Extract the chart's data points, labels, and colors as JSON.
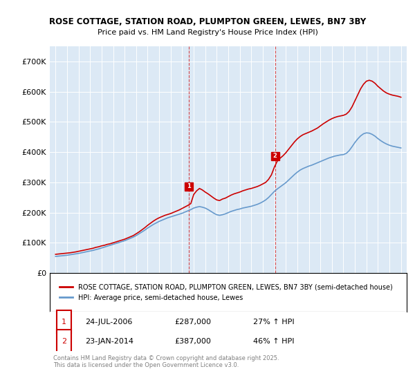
{
  "title1": "ROSE COTTAGE, STATION ROAD, PLUMPTON GREEN, LEWES, BN7 3BY",
  "title2": "Price paid vs. HM Land Registry's House Price Index (HPI)",
  "legend_label_red": "ROSE COTTAGE, STATION ROAD, PLUMPTON GREEN, LEWES, BN7 3BY (semi-detached house)",
  "legend_label_blue": "HPI: Average price, semi-detached house, Lewes",
  "purchase1_label": "1",
  "purchase1_date": "24-JUL-2006",
  "purchase1_price": "£287,000",
  "purchase1_hpi": "27% ↑ HPI",
  "purchase2_label": "2",
  "purchase2_date": "23-JAN-2014",
  "purchase2_price": "£387,000",
  "purchase2_hpi": "46% ↑ HPI",
  "footnote": "Contains HM Land Registry data © Crown copyright and database right 2025.\nThis data is licensed under the Open Government Licence v3.0.",
  "background_color": "#dce9f5",
  "plot_bg_color": "#dce9f5",
  "red_color": "#cc0000",
  "blue_color": "#6699cc",
  "marker1_x": 2006.56,
  "marker1_y": 287000,
  "marker2_x": 2014.07,
  "marker2_y": 387000,
  "vline1_x": 2006.56,
  "vline2_x": 2014.07,
  "ylim_min": 0,
  "ylim_max": 750000,
  "xlim_min": 1994.5,
  "xlim_max": 2025.5,
  "yticks": [
    0,
    100000,
    200000,
    300000,
    400000,
    500000,
    600000,
    700000
  ],
  "ytick_labels": [
    "£0",
    "£100K",
    "£200K",
    "£300K",
    "£400K",
    "£500K",
    "£600K",
    "£700K"
  ],
  "xticks": [
    1995,
    1996,
    1997,
    1998,
    1999,
    2000,
    2001,
    2002,
    2003,
    2004,
    2005,
    2006,
    2007,
    2008,
    2009,
    2010,
    2011,
    2012,
    2013,
    2014,
    2015,
    2016,
    2017,
    2018,
    2019,
    2020,
    2021,
    2022,
    2023,
    2024,
    2025
  ],
  "red_x": [
    1995.0,
    1995.25,
    1995.5,
    1995.75,
    1996.0,
    1996.25,
    1996.5,
    1996.75,
    1997.0,
    1997.25,
    1997.5,
    1997.75,
    1998.0,
    1998.25,
    1998.5,
    1998.75,
    1999.0,
    1999.25,
    1999.5,
    1999.75,
    2000.0,
    2000.25,
    2000.5,
    2000.75,
    2001.0,
    2001.25,
    2001.5,
    2001.75,
    2002.0,
    2002.25,
    2002.5,
    2002.75,
    2003.0,
    2003.25,
    2003.5,
    2003.75,
    2004.0,
    2004.25,
    2004.5,
    2004.75,
    2005.0,
    2005.25,
    2005.5,
    2005.75,
    2006.0,
    2006.25,
    2006.5,
    2006.75,
    2007.0,
    2007.25,
    2007.5,
    2007.75,
    2008.0,
    2008.25,
    2008.5,
    2008.75,
    2009.0,
    2009.25,
    2009.5,
    2009.75,
    2010.0,
    2010.25,
    2010.5,
    2010.75,
    2011.0,
    2011.25,
    2011.5,
    2011.75,
    2012.0,
    2012.25,
    2012.5,
    2012.75,
    2013.0,
    2013.25,
    2013.5,
    2013.75,
    2014.0,
    2014.25,
    2014.5,
    2014.75,
    2015.0,
    2015.25,
    2015.5,
    2015.75,
    2016.0,
    2016.25,
    2016.5,
    2016.75,
    2017.0,
    2017.25,
    2017.5,
    2017.75,
    2018.0,
    2018.25,
    2018.5,
    2018.75,
    2019.0,
    2019.25,
    2019.5,
    2019.75,
    2020.0,
    2020.25,
    2020.5,
    2020.75,
    2021.0,
    2021.25,
    2021.5,
    2021.75,
    2022.0,
    2022.25,
    2022.5,
    2022.75,
    2023.0,
    2023.25,
    2023.5,
    2023.75,
    2024.0,
    2024.25,
    2024.5,
    2024.75,
    2025.0
  ],
  "red_y": [
    62000,
    63000,
    64000,
    65000,
    66000,
    67000,
    68500,
    70000,
    72000,
    74000,
    76000,
    78000,
    80000,
    82000,
    85000,
    87000,
    90000,
    92000,
    95000,
    97000,
    100000,
    103000,
    106000,
    109000,
    112000,
    116000,
    120000,
    124000,
    130000,
    136000,
    143000,
    150000,
    158000,
    165000,
    172000,
    178000,
    183000,
    187000,
    191000,
    194000,
    197000,
    201000,
    205000,
    209000,
    214000,
    219000,
    224000,
    230000,
    260000,
    272000,
    280000,
    275000,
    268000,
    262000,
    255000,
    248000,
    242000,
    240000,
    245000,
    248000,
    253000,
    258000,
    262000,
    265000,
    268000,
    272000,
    275000,
    278000,
    280000,
    283000,
    286000,
    290000,
    295000,
    300000,
    310000,
    325000,
    350000,
    370000,
    380000,
    388000,
    398000,
    410000,
    422000,
    434000,
    444000,
    452000,
    458000,
    462000,
    466000,
    470000,
    475000,
    480000,
    487000,
    494000,
    500000,
    506000,
    511000,
    515000,
    518000,
    520000,
    522000,
    526000,
    535000,
    550000,
    570000,
    590000,
    610000,
    625000,
    635000,
    638000,
    635000,
    628000,
    618000,
    610000,
    602000,
    596000,
    592000,
    589000,
    587000,
    585000,
    582000
  ],
  "blue_x": [
    1995.0,
    1995.25,
    1995.5,
    1995.75,
    1996.0,
    1996.25,
    1996.5,
    1996.75,
    1997.0,
    1997.25,
    1997.5,
    1997.75,
    1998.0,
    1998.25,
    1998.5,
    1998.75,
    1999.0,
    1999.25,
    1999.5,
    1999.75,
    2000.0,
    2000.25,
    2000.5,
    2000.75,
    2001.0,
    2001.25,
    2001.5,
    2001.75,
    2002.0,
    2002.25,
    2002.5,
    2002.75,
    2003.0,
    2003.25,
    2003.5,
    2003.75,
    2004.0,
    2004.25,
    2004.5,
    2004.75,
    2005.0,
    2005.25,
    2005.5,
    2005.75,
    2006.0,
    2006.25,
    2006.5,
    2006.75,
    2007.0,
    2007.25,
    2007.5,
    2007.75,
    2008.0,
    2008.25,
    2008.5,
    2008.75,
    2009.0,
    2009.25,
    2009.5,
    2009.75,
    2010.0,
    2010.25,
    2010.5,
    2010.75,
    2011.0,
    2011.25,
    2011.5,
    2011.75,
    2012.0,
    2012.25,
    2012.5,
    2012.75,
    2013.0,
    2013.25,
    2013.5,
    2013.75,
    2014.0,
    2014.25,
    2014.5,
    2014.75,
    2015.0,
    2015.25,
    2015.5,
    2015.75,
    2016.0,
    2016.25,
    2016.5,
    2016.75,
    2017.0,
    2017.25,
    2017.5,
    2017.75,
    2018.0,
    2018.25,
    2018.5,
    2018.75,
    2019.0,
    2019.25,
    2019.5,
    2019.75,
    2020.0,
    2020.25,
    2020.5,
    2020.75,
    2021.0,
    2021.25,
    2021.5,
    2021.75,
    2022.0,
    2022.25,
    2022.5,
    2022.75,
    2023.0,
    2023.25,
    2023.5,
    2023.75,
    2024.0,
    2024.25,
    2024.5,
    2024.75,
    2025.0
  ],
  "blue_y": [
    55000,
    56000,
    57000,
    58000,
    59000,
    60500,
    62000,
    63500,
    65000,
    67000,
    69000,
    71000,
    73000,
    75000,
    77500,
    80000,
    83000,
    86000,
    89000,
    92000,
    95000,
    98000,
    101000,
    104000,
    107000,
    111000,
    115000,
    119000,
    124000,
    130000,
    136000,
    142000,
    149000,
    155000,
    161000,
    166000,
    171000,
    175000,
    179000,
    183000,
    186000,
    189000,
    192000,
    195000,
    198000,
    202000,
    206000,
    210000,
    215000,
    218000,
    220000,
    218000,
    215000,
    210000,
    204000,
    198000,
    193000,
    191000,
    193000,
    196000,
    200000,
    204000,
    207000,
    210000,
    212000,
    215000,
    217000,
    219000,
    221000,
    224000,
    227000,
    231000,
    236000,
    242000,
    250000,
    260000,
    270000,
    278000,
    285000,
    292000,
    299000,
    308000,
    317000,
    326000,
    334000,
    341000,
    346000,
    350000,
    354000,
    357000,
    361000,
    365000,
    369000,
    373000,
    377000,
    381000,
    384000,
    387000,
    389000,
    391000,
    392000,
    396000,
    405000,
    418000,
    432000,
    444000,
    454000,
    461000,
    464000,
    463000,
    459000,
    453000,
    445000,
    438000,
    432000,
    427000,
    423000,
    420000,
    418000,
    416000,
    414000
  ]
}
